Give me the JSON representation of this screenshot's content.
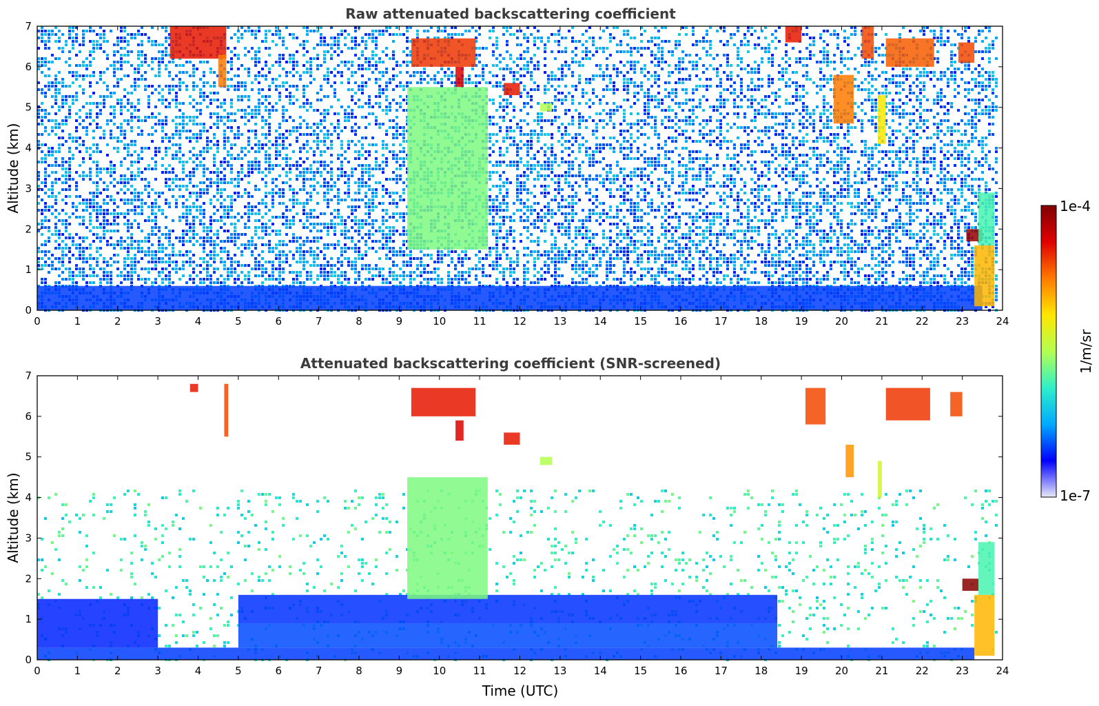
{
  "colors": {
    "colormap": [
      "#e8e8f8",
      "#0000ff",
      "#00aaff",
      "#2ef0c8",
      "#b4ff50",
      "#ffe600",
      "#ff7a00",
      "#e00000",
      "#800000"
    ],
    "axis": "#000000",
    "title": "#3c3c3c"
  },
  "colorbar": {
    "max_label": "1e-4",
    "min_label": "1e-7",
    "unit_label": "1/m/sr",
    "scale": "log",
    "range": [
      1e-07,
      0.0001
    ]
  },
  "chart_data": [
    {
      "type": "heatmap",
      "title": "Raw attenuated backscattering coefficient",
      "xlabel": "",
      "ylabel": "Altitude (km)",
      "xlim": [
        0,
        24
      ],
      "ylim": [
        0,
        7
      ],
      "xticks": [
        0,
        1,
        2,
        3,
        4,
        5,
        6,
        7,
        8,
        9,
        10,
        11,
        12,
        13,
        14,
        15,
        16,
        17,
        18,
        19,
        20,
        21,
        22,
        23,
        24
      ],
      "yticks": [
        0,
        1,
        2,
        3,
        4,
        5,
        6,
        7
      ],
      "background": "noisy",
      "features": [
        {
          "t": [
            0,
            23.5
          ],
          "alt": [
            0,
            0.6
          ],
          "level": 0.17
        },
        {
          "t": [
            3.3,
            4.7
          ],
          "alt": [
            6.2,
            7.0
          ],
          "level": 0.85
        },
        {
          "t": [
            4.5,
            4.7
          ],
          "alt": [
            5.5,
            6.3
          ],
          "level": 0.75
        },
        {
          "t": [
            9.3,
            10.9
          ],
          "alt": [
            6.0,
            6.7
          ],
          "level": 0.82
        },
        {
          "t": [
            10.4,
            10.6
          ],
          "alt": [
            5.5,
            6.0
          ],
          "level": 0.88
        },
        {
          "t": [
            11.6,
            12.0
          ],
          "alt": [
            5.3,
            5.6
          ],
          "level": 0.85
        },
        {
          "t": [
            12.5,
            12.8
          ],
          "alt": [
            4.9,
            5.1
          ],
          "level": 0.5
        },
        {
          "t": [
            9.2,
            11.2
          ],
          "alt": [
            1.5,
            5.5
          ],
          "level": 0.45
        },
        {
          "t": [
            18.6,
            19.0
          ],
          "alt": [
            6.6,
            7.0
          ],
          "level": 0.85
        },
        {
          "t": [
            19.8,
            20.3
          ],
          "alt": [
            4.6,
            5.8
          ],
          "level": 0.75
        },
        {
          "t": [
            20.5,
            20.8
          ],
          "alt": [
            6.2,
            7.0
          ],
          "level": 0.8
        },
        {
          "t": [
            20.9,
            21.1
          ],
          "alt": [
            4.1,
            5.3
          ],
          "level": 0.62
        },
        {
          "t": [
            21.1,
            22.3
          ],
          "alt": [
            6.0,
            6.7
          ],
          "level": 0.78
        },
        {
          "t": [
            22.9,
            23.3
          ],
          "alt": [
            6.1,
            6.6
          ],
          "level": 0.8
        },
        {
          "t": [
            23.1,
            23.5
          ],
          "alt": [
            1.7,
            2.0
          ],
          "level": 0.97
        },
        {
          "t": [
            23.3,
            23.8
          ],
          "alt": [
            0.1,
            1.6
          ],
          "level": 0.68
        },
        {
          "t": [
            23.4,
            23.8
          ],
          "alt": [
            1.6,
            2.9
          ],
          "level": 0.4
        }
      ]
    },
    {
      "type": "heatmap",
      "title": "Attenuated backscattering coefficient (SNR-screened)",
      "xlabel": "Time (UTC)",
      "ylabel": "Altitude (km)",
      "xlim": [
        0,
        24
      ],
      "ylim": [
        0,
        7
      ],
      "xticks": [
        0,
        1,
        2,
        3,
        4,
        5,
        6,
        7,
        8,
        9,
        10,
        11,
        12,
        13,
        14,
        15,
        16,
        17,
        18,
        19,
        20,
        21,
        22,
        23,
        24
      ],
      "yticks": [
        0,
        1,
        2,
        3,
        4,
        5,
        6,
        7
      ],
      "background": "screened",
      "features": [
        {
          "t": [
            0,
            23.3
          ],
          "alt": [
            0,
            0.3
          ],
          "level": 0.17
        },
        {
          "t": [
            5.0,
            18.4
          ],
          "alt": [
            0.3,
            0.9
          ],
          "level": 0.18
        },
        {
          "t": [
            5.0,
            18.4
          ],
          "alt": [
            0.9,
            1.6
          ],
          "level": 0.16
        },
        {
          "t": [
            0,
            3.0
          ],
          "alt": [
            0.3,
            1.5
          ],
          "level": 0.15
        },
        {
          "t": [
            9.2,
            11.2
          ],
          "alt": [
            1.5,
            4.5
          ],
          "level": 0.45
        },
        {
          "t": [
            3.8,
            4.0
          ],
          "alt": [
            6.6,
            6.8
          ],
          "level": 0.85
        },
        {
          "t": [
            4.65,
            4.75
          ],
          "alt": [
            5.5,
            6.8
          ],
          "level": 0.8
        },
        {
          "t": [
            9.3,
            10.9
          ],
          "alt": [
            6.0,
            6.7
          ],
          "level": 0.85
        },
        {
          "t": [
            10.4,
            10.6
          ],
          "alt": [
            5.4,
            5.9
          ],
          "level": 0.88
        },
        {
          "t": [
            11.6,
            12.0
          ],
          "alt": [
            5.3,
            5.6
          ],
          "level": 0.85
        },
        {
          "t": [
            12.5,
            12.8
          ],
          "alt": [
            4.8,
            5.0
          ],
          "level": 0.5
        },
        {
          "t": [
            19.1,
            19.6
          ],
          "alt": [
            5.8,
            6.7
          ],
          "level": 0.8
        },
        {
          "t": [
            20.1,
            20.3
          ],
          "alt": [
            4.5,
            5.3
          ],
          "level": 0.72
        },
        {
          "t": [
            20.9,
            21.0
          ],
          "alt": [
            4.0,
            4.9
          ],
          "level": 0.55
        },
        {
          "t": [
            21.1,
            22.2
          ],
          "alt": [
            5.9,
            6.7
          ],
          "level": 0.82
        },
        {
          "t": [
            22.7,
            23.0
          ],
          "alt": [
            6.0,
            6.6
          ],
          "level": 0.8
        },
        {
          "t": [
            23.0,
            23.4
          ],
          "alt": [
            1.7,
            2.0
          ],
          "level": 0.99
        },
        {
          "t": [
            23.3,
            23.8
          ],
          "alt": [
            0.1,
            1.6
          ],
          "level": 0.68
        },
        {
          "t": [
            23.4,
            23.8
          ],
          "alt": [
            1.6,
            2.9
          ],
          "level": 0.4
        }
      ]
    }
  ]
}
